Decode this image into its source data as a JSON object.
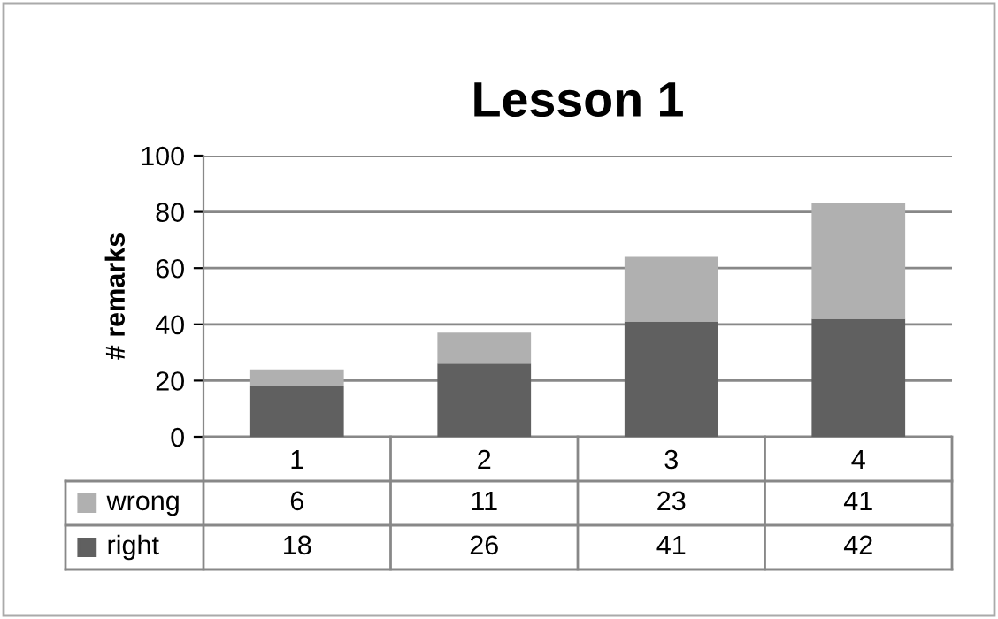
{
  "chart_data": {
    "type": "bar",
    "title": "Lesson 1",
    "ylabel": "# remarks",
    "categories": [
      "1",
      "2",
      "3",
      "4"
    ],
    "stacked": true,
    "series": [
      {
        "name": "right",
        "color": "#606060",
        "values": [
          18,
          26,
          41,
          42
        ]
      },
      {
        "name": "wrong",
        "color": "#b0b0b0",
        "values": [
          6,
          11,
          23,
          41
        ]
      }
    ],
    "ylim": [
      0,
      100
    ],
    "yticks": [
      0,
      20,
      40,
      60,
      80,
      100
    ],
    "grid": "y",
    "legend": "bottom",
    "data_labels": true
  }
}
